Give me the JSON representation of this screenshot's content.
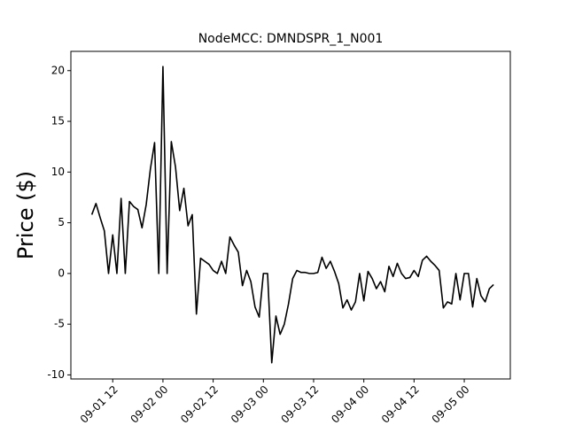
{
  "chart_data": {
    "type": "line",
    "title": "NodeMCC: DMNDSPR_1_N001",
    "y_label": "Price ($)",
    "x": [
      "09-01 07",
      "09-01 08",
      "09-01 09",
      "09-01 10",
      "09-01 11",
      "09-01 12",
      "09-01 13",
      "09-01 14",
      "09-01 15",
      "09-01 16",
      "09-01 17",
      "09-01 18",
      "09-01 19",
      "09-01 20",
      "09-01 21",
      "09-01 22",
      "09-01 23",
      "09-02 00",
      "09-02 01",
      "09-02 02",
      "09-02 03",
      "09-02 04",
      "09-02 05",
      "09-02 06",
      "09-02 07",
      "09-02 08",
      "09-02 09",
      "09-02 10",
      "09-02 11",
      "09-02 12",
      "09-02 13",
      "09-02 14",
      "09-02 15",
      "09-02 16",
      "09-02 17",
      "09-02 18",
      "09-02 19",
      "09-02 20",
      "09-02 21",
      "09-02 22",
      "09-02 23",
      "09-03 00",
      "09-03 01",
      "09-03 02",
      "09-03 03",
      "09-03 04",
      "09-03 05",
      "09-03 06",
      "09-03 07",
      "09-03 08",
      "09-03 09",
      "09-03 10",
      "09-03 11",
      "09-03 12",
      "09-03 13",
      "09-03 14",
      "09-03 15",
      "09-03 16",
      "09-03 17",
      "09-03 18",
      "09-03 19",
      "09-03 20",
      "09-03 21",
      "09-03 22",
      "09-03 23",
      "09-04 00",
      "09-04 01",
      "09-04 02",
      "09-04 03",
      "09-04 04",
      "09-04 05",
      "09-04 06",
      "09-04 07",
      "09-04 08",
      "09-04 09",
      "09-04 10",
      "09-04 11",
      "09-04 12",
      "09-04 13",
      "09-04 14",
      "09-04 15",
      "09-04 16",
      "09-04 17",
      "09-04 18",
      "09-04 19",
      "09-04 20",
      "09-04 21",
      "09-04 22",
      "09-04 23",
      "09-05 00",
      "09-05 01",
      "09-05 02",
      "09-05 03",
      "09-05 04",
      "09-05 05",
      "09-05 06",
      "09-05 07"
    ],
    "series": [
      {
        "name": "DMNDSPR_1_N001",
        "color": "#000000",
        "values": [
          5.8,
          6.9,
          5.5,
          4.2,
          0,
          3.8,
          0,
          7.4,
          0,
          7.1,
          6.6,
          6.3,
          4.5,
          6.8,
          10.3,
          12.9,
          0,
          20.4,
          0,
          13,
          10.5,
          6.2,
          8.4,
          4.7,
          5.8,
          -4.0,
          1.5,
          1.2,
          0.9,
          0.3,
          0,
          1.2,
          0,
          3.6,
          2.8,
          2.1,
          -1.2,
          0.3,
          -0.8,
          -3.3,
          -4.3,
          0,
          0,
          -8.8,
          -4.2,
          -6.0,
          -5.0,
          -3.0,
          -0.5,
          0.3,
          0.1,
          0.1,
          0,
          0,
          0.1,
          1.6,
          0.5,
          1.2,
          0.2,
          -1.0,
          -3.4,
          -2.6,
          -3.6,
          -2.8,
          0,
          -2.7,
          0.2,
          -0.5,
          -1.5,
          -0.8,
          -1.8,
          0.7,
          -0.3,
          1.0,
          0,
          -0.5,
          -0.4,
          0.3,
          -0.3,
          1.3,
          1.7,
          1.2,
          0.8,
          0.3,
          -3.4,
          -2.8,
          -3.0,
          0,
          -2.6,
          0,
          0,
          -3.3,
          -0.5,
          -2.2,
          -2.8,
          -1.5,
          -1.1
        ]
      }
    ],
    "xlim": [
      "09-01 02",
      "09-05 11"
    ],
    "xticks": [
      "09-01 12",
      "09-02 00",
      "09-02 12",
      "09-03 00",
      "09-03 12",
      "09-04 00",
      "09-04 12",
      "09-05 00"
    ],
    "ylim": [
      -10.4,
      21.9
    ],
    "yticks": [
      -10,
      -5,
      0,
      5,
      10,
      15,
      20
    ]
  }
}
